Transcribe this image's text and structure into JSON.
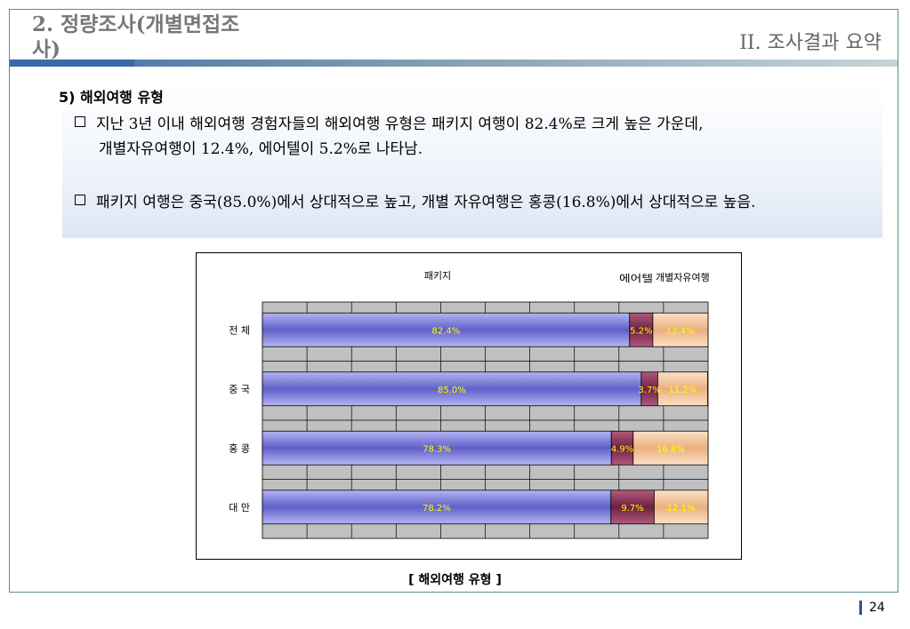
{
  "header": {
    "section_title": "2. 정량조사(개별면접조사)",
    "chapter_title": "II. 조사결과 요약"
  },
  "summary": {
    "subheading": "5) 해외여행 유형",
    "bullets": [
      {
        "line1": "지난 3년 이내 해외여행 경험자들의 해외여행 유형은 패키지 여행이 82.4%로 크게 높은 가운데,",
        "line2": "개별자유여행이 12.4%, 에어텔이 5.2%로 나타남."
      },
      {
        "line1": "패키지 여행은 중국(85.0%)에서 상대적으로 높고, 개별 자유여행은 홍콩(16.8%)에서 상대적으로 높음."
      }
    ]
  },
  "chart_data": {
    "type": "bar",
    "orientation": "horizontal",
    "stacked": true,
    "categories": [
      "전 체",
      "중 국",
      "홍 콩",
      "대 만"
    ],
    "series": [
      {
        "name": "패키지",
        "values": [
          82.4,
          85.0,
          78.3,
          78.2
        ],
        "labels": [
          "82.4%",
          "85.0%",
          "78.3%",
          "78.2%"
        ],
        "color": "#8484e6"
      },
      {
        "name": "에어텔",
        "values": [
          5.2,
          3.7,
          4.9,
          9.7
        ],
        "labels": [
          "5.2%",
          "3.7%",
          "4.9%",
          "9.7%"
        ],
        "color": "#8c3456"
      },
      {
        "name": "개별자유여행",
        "values": [
          12.4,
          11.2,
          16.8,
          12.1
        ],
        "labels": [
          "12.4%",
          "11.2%",
          "16.8%",
          "12.1%"
        ],
        "color": "#f6c9a0"
      }
    ],
    "legend_labels": [
      "패키지",
      "에어텔",
      "개별자유여행"
    ],
    "xlim": [
      0,
      100
    ],
    "grid": true,
    "legend_position": "top",
    "label_color": "#ffff00",
    "plot_background": "#c0c0c0"
  },
  "caption": "[ 해외여행 유형 ]",
  "page_number": "24"
}
